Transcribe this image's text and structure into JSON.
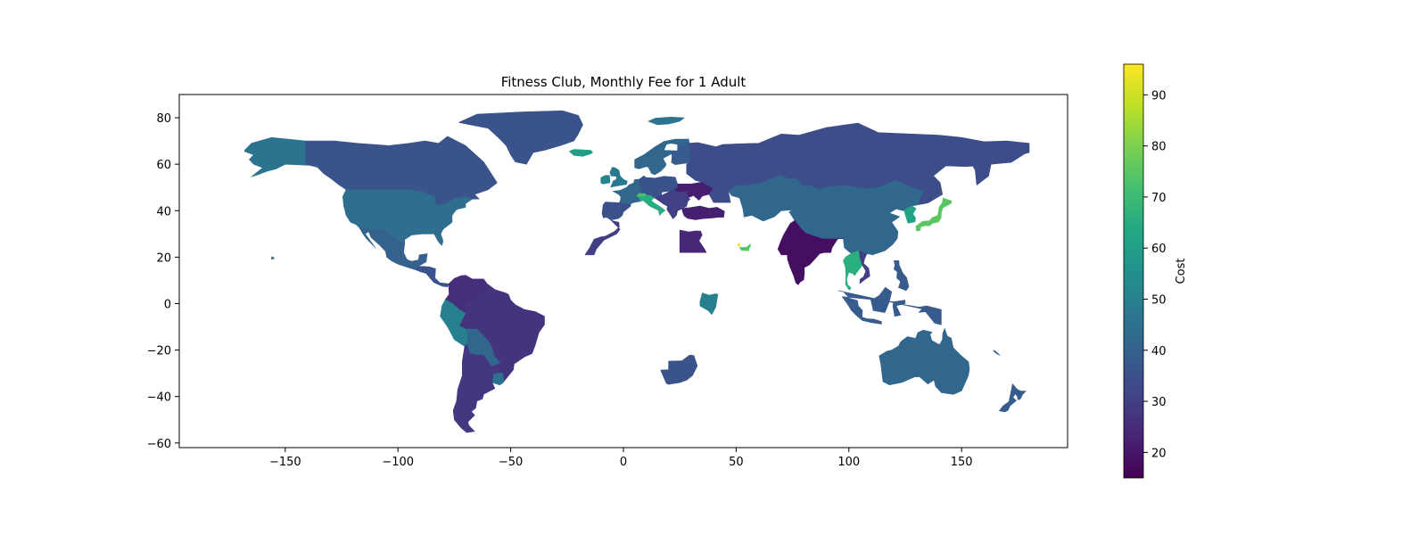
{
  "map_data": {
    "title": "Fitness Club, Monthly Fee for 1 Adult",
    "x_ticks": [
      -150,
      -100,
      -50,
      0,
      50,
      100,
      150
    ],
    "y_ticks": [
      -60,
      -40,
      -20,
      0,
      20,
      40,
      60,
      80
    ],
    "x_range": [
      -197,
      197
    ],
    "y_range": [
      -62,
      90
    ],
    "colorbar": {
      "label": "Cost",
      "range": [
        15,
        96
      ],
      "ticks": [
        20,
        30,
        40,
        50,
        60,
        70,
        80,
        90
      ],
      "colormap": "viridis"
    },
    "regions": [
      {
        "region": "Alaska",
        "value": 46
      },
      {
        "region": "Canada",
        "value": 36
      },
      {
        "region": "United States",
        "value": 44
      },
      {
        "region": "Mexico",
        "value": 40
      },
      {
        "region": "Central America",
        "value": 36
      },
      {
        "region": "Colombia / Venezuela",
        "value": 26
      },
      {
        "region": "Peru / Ecuador",
        "value": 50
      },
      {
        "region": "Brazil",
        "value": 27
      },
      {
        "region": "Bolivia / Paraguay",
        "value": 42
      },
      {
        "region": "Uruguay",
        "value": 45
      },
      {
        "region": "Argentina / Chile",
        "value": 28
      },
      {
        "region": "Greenland",
        "value": 36
      },
      {
        "region": "Iceland",
        "value": 60
      },
      {
        "region": "Svalbard",
        "value": 46
      },
      {
        "region": "United Kingdom",
        "value": 48
      },
      {
        "region": "Ireland",
        "value": 52
      },
      {
        "region": "Scandinavia",
        "value": 42
      },
      {
        "region": "Finland",
        "value": 38
      },
      {
        "region": "France / Benelux",
        "value": 42
      },
      {
        "region": "Iberia",
        "value": 35
      },
      {
        "region": "Morocco / West Africa",
        "value": 30
      },
      {
        "region": "Switzerland",
        "value": 72
      },
      {
        "region": "Italy",
        "value": 65
      },
      {
        "region": "Central Europe",
        "value": 36
      },
      {
        "region": "Ukraine",
        "value": 22
      },
      {
        "region": "Balkans",
        "value": 30
      },
      {
        "region": "Turkey",
        "value": 22
      },
      {
        "region": "Egypt",
        "value": 24
      },
      {
        "region": "Qatar",
        "value": 93
      },
      {
        "region": "UAE",
        "value": 74
      },
      {
        "region": "Kazakhstan / Central Asia",
        "value": 42
      },
      {
        "region": "Russia",
        "value": 34
      },
      {
        "region": "China / Mongolia",
        "value": 42
      },
      {
        "region": "India",
        "value": 18
      },
      {
        "region": "Thailand",
        "value": 66
      },
      {
        "region": "Vietnam",
        "value": 30
      },
      {
        "region": "Korea",
        "value": 62
      },
      {
        "region": "Japan",
        "value": 75
      },
      {
        "region": "Philippines",
        "value": 38
      },
      {
        "region": "Indonesia / Malaysia",
        "value": 38
      },
      {
        "region": "Kenya",
        "value": 50
      },
      {
        "region": "South Africa",
        "value": 36
      },
      {
        "region": "Australia",
        "value": 42
      },
      {
        "region": "New Zealand",
        "value": 38
      },
      {
        "region": "Hawaii",
        "value": 46
      },
      {
        "region": "New Caledonia",
        "value": 40
      }
    ]
  }
}
